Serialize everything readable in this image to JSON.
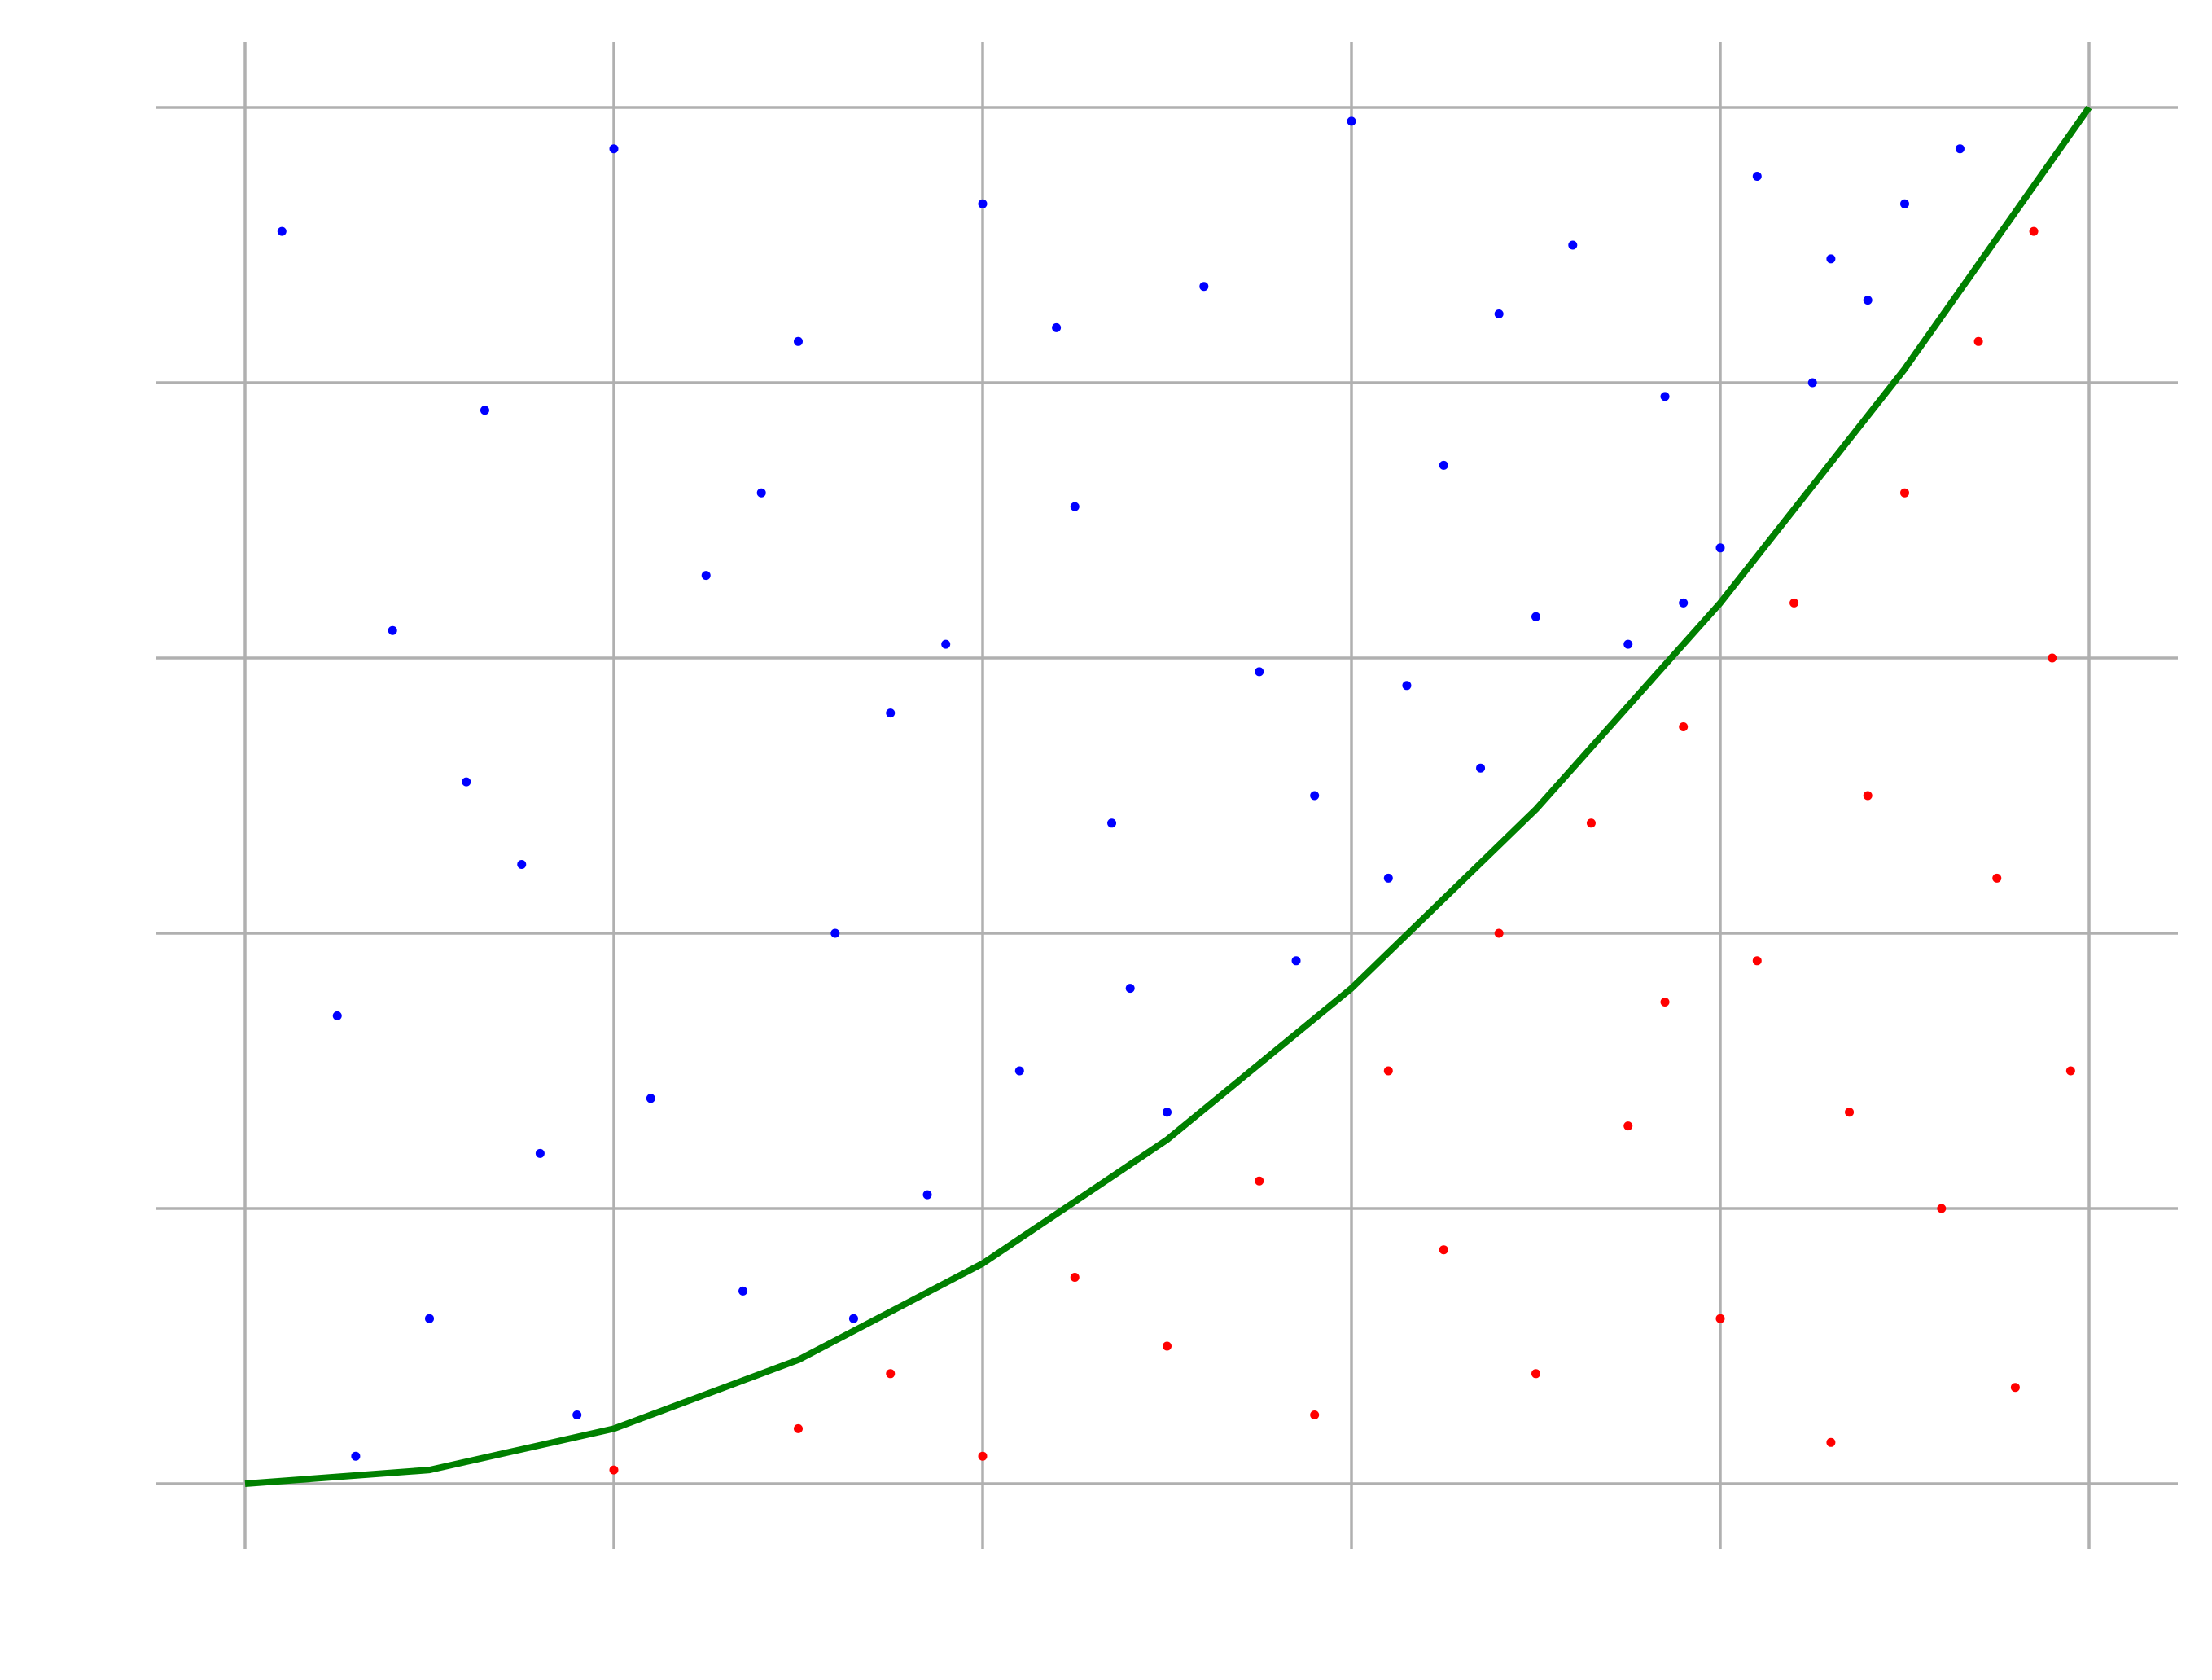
{
  "chart_data": {
    "type": "scatter",
    "xlim": [
      0,
      1
    ],
    "ylim": [
      0,
      1
    ],
    "xticks": [
      0,
      0.2,
      0.4,
      0.6,
      0.8,
      1
    ],
    "yticks": [
      0,
      0.2,
      0.4,
      0.6,
      0.8,
      1
    ],
    "grid": true,
    "series": [
      {
        "type": "scatter",
        "color": "#0000ff",
        "x": [
          0.02,
          0.05,
          0.08,
          0.1,
          0.13,
          0.15,
          0.18,
          0.2,
          0.22,
          0.25,
          0.27,
          0.3,
          0.32,
          0.35,
          0.37,
          0.4,
          0.42,
          0.45,
          0.47,
          0.5,
          0.52,
          0.55,
          0.57,
          0.6,
          0.62,
          0.65,
          0.67,
          0.7,
          0.72,
          0.75,
          0.77,
          0.8,
          0.82,
          0.85,
          0.88,
          0.9,
          0.93,
          0.06,
          0.12,
          0.33,
          0.44,
          0.58,
          0.68,
          0.78,
          0.16,
          0.28,
          0.38,
          0.48,
          0.63,
          0.86
        ],
        "y": [
          0.91,
          0.34,
          0.62,
          0.12,
          0.78,
          0.45,
          0.05,
          0.97,
          0.28,
          0.66,
          0.14,
          0.83,
          0.4,
          0.56,
          0.21,
          0.93,
          0.3,
          0.71,
          0.48,
          0.27,
          0.87,
          0.59,
          0.38,
          0.99,
          0.44,
          0.74,
          0.52,
          0.63,
          0.9,
          0.61,
          0.79,
          0.68,
          0.95,
          0.8,
          0.86,
          0.93,
          0.97,
          0.02,
          0.51,
          0.12,
          0.84,
          0.5,
          0.85,
          0.64,
          0.24,
          0.72,
          0.61,
          0.36,
          0.58,
          0.89
        ]
      },
      {
        "type": "scatter",
        "color": "#ff0000",
        "x": [
          0.2,
          0.3,
          0.35,
          0.4,
          0.45,
          0.5,
          0.55,
          0.58,
          0.62,
          0.65,
          0.68,
          0.7,
          0.73,
          0.75,
          0.78,
          0.8,
          0.82,
          0.84,
          0.86,
          0.88,
          0.9,
          0.92,
          0.94,
          0.95,
          0.97,
          0.98,
          0.99,
          0.96,
          0.87,
          0.77
        ],
        "y": [
          0.01,
          0.04,
          0.08,
          0.02,
          0.15,
          0.1,
          0.22,
          0.05,
          0.3,
          0.17,
          0.4,
          0.08,
          0.48,
          0.26,
          0.55,
          0.12,
          0.38,
          0.64,
          0.03,
          0.5,
          0.72,
          0.2,
          0.83,
          0.44,
          0.91,
          0.6,
          0.3,
          0.07,
          0.27,
          0.35
        ]
      },
      {
        "type": "line",
        "color": "#008000",
        "x": [
          0,
          0.1,
          0.2,
          0.3,
          0.4,
          0.5,
          0.6,
          0.7,
          0.8,
          0.9,
          1
        ],
        "y": [
          0,
          0.01,
          0.04,
          0.09,
          0.16,
          0.25,
          0.36,
          0.49,
          0.64,
          0.81,
          1
        ]
      }
    ]
  }
}
